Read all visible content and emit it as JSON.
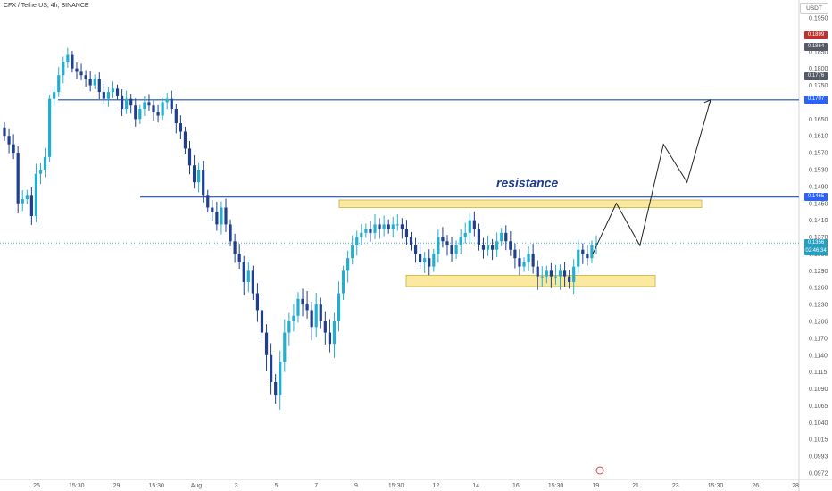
{
  "header": {
    "title": "CFX / TetherUS, 4h, BINANCE"
  },
  "scale": {
    "unit": "USDT"
  },
  "badges": [
    {
      "label": "0.1899",
      "color": "#c0302f"
    },
    {
      "label": "0.1864",
      "color": "#555a66"
    },
    {
      "label": "0.1776",
      "color": "#555a66"
    },
    {
      "label": "0.1707",
      "color": "#2962ff"
    },
    {
      "label": "0.1465",
      "color": "#2962ff"
    },
    {
      "label": "0.1356",
      "color": "#26a0c0",
      "sub": "02:46:34"
    }
  ],
  "colors": {
    "up": "#22aed1",
    "down": "#1f3f8f",
    "line": "#1d4fb8",
    "zone": "#fbe9a0",
    "zone_border": "#c9b23a",
    "last": "#26a0c0",
    "arrow": "#222222"
  },
  "chart_data": {
    "type": "candlestick",
    "title": "CFX / TetherUS, 4h, BINANCE",
    "y_ticks": [
      "0.1950",
      "0.1900",
      "0.1850",
      "0.1800",
      "0.1750",
      "0.1700",
      "0.1650",
      "0.1610",
      "0.1570",
      "0.1530",
      "0.1490",
      "0.1450",
      "0.1410",
      "0.1370",
      "0.1330",
      "0.1290",
      "0.1260",
      "0.1230",
      "0.1200",
      "0.1170",
      "0.1140",
      "0.1115",
      "0.1090",
      "0.1065",
      "0.1040",
      "0.1015",
      "0.0993",
      "0.0972"
    ],
    "x_ticks": [
      "26",
      "15:30",
      "29",
      "15:30",
      "Aug",
      "3",
      "5",
      "7",
      "9",
      "15:30",
      "12",
      "14",
      "16",
      "15:30",
      "19",
      "21",
      "23",
      "15:30",
      "26",
      "28"
    ],
    "levels": [
      {
        "name": "",
        "value": 0.1707
      },
      {
        "name": "",
        "value": 0.1465
      }
    ],
    "zones": [
      {
        "name": "resistance",
        "low": 0.144,
        "high": 0.1458
      },
      {
        "name": "",
        "low": 0.1262,
        "high": 0.1282
      }
    ],
    "annotations": [
      {
        "text": "resistance",
        "price": 0.1485
      }
    ],
    "last_price": 0.1356,
    "countdown": "02:46:34",
    "projection": [
      0.133,
      0.145,
      0.135,
      0.159,
      0.15,
      0.1707
    ],
    "closes": [
      0.161,
      0.159,
      0.157,
      0.145,
      0.146,
      0.147,
      0.142,
      0.152,
      0.153,
      0.156,
      0.171,
      0.173,
      0.178,
      0.182,
      0.184,
      0.18,
      0.179,
      0.178,
      0.177,
      0.175,
      0.177,
      0.173,
      0.171,
      0.173,
      0.174,
      0.172,
      0.168,
      0.171,
      0.169,
      0.165,
      0.168,
      0.17,
      0.169,
      0.167,
      0.166,
      0.17,
      0.171,
      0.168,
      0.164,
      0.162,
      0.158,
      0.154,
      0.15,
      0.153,
      0.147,
      0.144,
      0.143,
      0.14,
      0.144,
      0.14,
      0.136,
      0.133,
      0.131,
      0.127,
      0.129,
      0.125,
      0.122,
      0.118,
      0.114,
      0.11,
      0.108,
      0.113,
      0.118,
      0.12,
      0.121,
      0.124,
      0.123,
      0.122,
      0.119,
      0.123,
      0.12,
      0.118,
      0.116,
      0.12,
      0.125,
      0.129,
      0.132,
      0.135,
      0.137,
      0.138,
      0.139,
      0.138,
      0.14,
      0.139,
      0.14,
      0.139,
      0.14,
      0.14,
      0.139,
      0.137,
      0.135,
      0.133,
      0.131,
      0.132,
      0.13,
      0.133,
      0.137,
      0.136,
      0.135,
      0.133,
      0.135,
      0.137,
      0.138,
      0.141,
      0.139,
      0.135,
      0.134,
      0.135,
      0.134,
      0.136,
      0.138,
      0.136,
      0.134,
      0.132,
      0.13,
      0.131,
      0.133,
      0.13,
      0.128,
      0.128,
      0.129,
      0.128,
      0.128,
      0.129,
      0.128,
      0.127,
      0.13,
      0.134,
      0.133,
      0.132,
      0.135,
      0.1356
    ]
  }
}
